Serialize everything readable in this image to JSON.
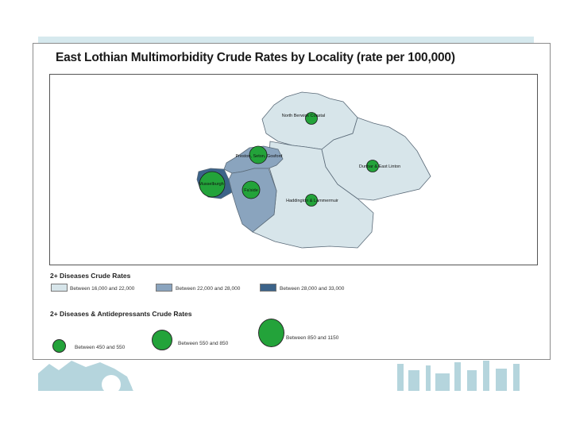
{
  "title": "East Lothian Multimorbidity Crude Rates by Locality (rate per 100,000)",
  "colors": {
    "band_light": "#d6e9ee",
    "band_medium": "#b5d5dd",
    "fill_low": "#d7e5ea",
    "fill_mid": "#8aa4be",
    "fill_high": "#3c6389",
    "marker": "#23a33a"
  },
  "localities": [
    {
      "name": "North Berwick Coastal",
      "band": "Between 16,000 and 22,000"
    },
    {
      "name": "Preston, Seton, Gosford",
      "band": "Between 22,000 and 28,000"
    },
    {
      "name": "Musselburgh",
      "band": "Between 28,000 and 33,000"
    },
    {
      "name": "Fa'side",
      "band": "Between 22,000 and 28,000"
    },
    {
      "name": "Haddington & Lammermuir",
      "band": "Between 16,000 and 22,000"
    },
    {
      "name": "Dunbar & East Linton",
      "band": "Between 16,000 and 22,000"
    }
  ],
  "legend": {
    "crude_rates": {
      "heading": "2+ Diseases Crude Rates",
      "items": [
        {
          "label": "Between 16,000 and 22,000",
          "color": "#d7e5ea"
        },
        {
          "label": "Between 22,000 and 28,000",
          "color": "#8aa4be"
        },
        {
          "label": "Between 28,000 and 33,000",
          "color": "#3c6389"
        }
      ]
    },
    "antidepressants": {
      "heading": "2+ Diseases & Antidepressants Crude Rates",
      "items": [
        {
          "label": "Between 450 and 550"
        },
        {
          "label": "Between 550 and 850"
        },
        {
          "label": "Between 850 and 1150"
        }
      ]
    }
  }
}
